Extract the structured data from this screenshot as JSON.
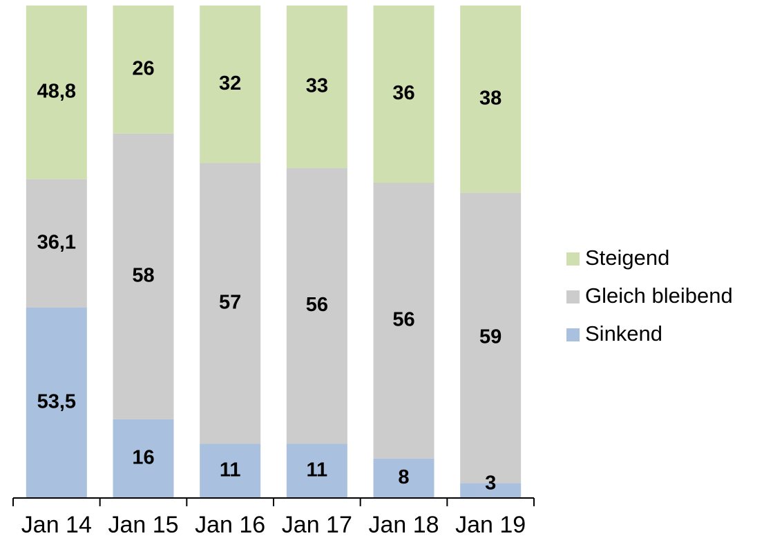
{
  "chart_data": {
    "type": "bar",
    "stacked": true,
    "categories": [
      "Jan 14",
      "Jan 15",
      "Jan 16",
      "Jan 17",
      "Jan 18",
      "Jan 19"
    ],
    "series": [
      {
        "name": "Sinkend",
        "color": "#a9c0df",
        "values": [
          53.5,
          16,
          11,
          11,
          8,
          3
        ],
        "labels": [
          "53,5",
          "16",
          "11",
          "11",
          "8",
          "3"
        ]
      },
      {
        "name": "Gleich bleibend",
        "color": "#cccccc",
        "values": [
          36.1,
          58,
          57,
          56,
          56,
          59
        ],
        "labels": [
          "36,1",
          "58",
          "57",
          "56",
          "56",
          "59"
        ]
      },
      {
        "name": "Steigend",
        "color": "#cfdfb0",
        "values": [
          48.8,
          26,
          32,
          33,
          36,
          38
        ],
        "labels": [
          "48,8",
          "26",
          "32",
          "33",
          "36",
          "38"
        ]
      }
    ],
    "legend_position": "right",
    "legend_order": [
      "Steigend",
      "Gleich bleibend",
      "Sinkend"
    ],
    "grid": false,
    "normalized": true
  }
}
